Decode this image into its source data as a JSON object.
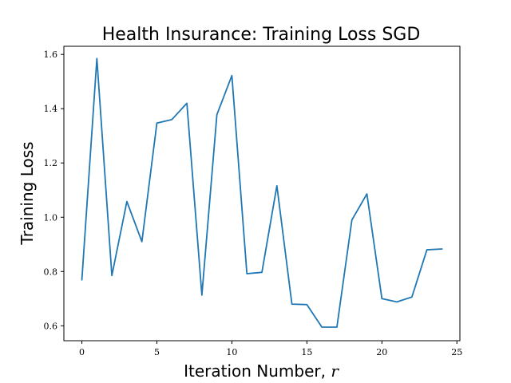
{
  "chart_data": {
    "type": "line",
    "title": "Health Insurance: Training Loss SGD",
    "xlabel": "Iteration Number, ",
    "xlabel_var": "r",
    "ylabel": "Training Loss",
    "xlim": [
      -1.2,
      25.2
    ],
    "ylim": [
      0.545,
      1.63
    ],
    "xticks": [
      0,
      5,
      10,
      15,
      20,
      25
    ],
    "xtick_labels": [
      "0",
      "5",
      "10",
      "15",
      "20",
      "25"
    ],
    "yticks": [
      0.6,
      0.8,
      1.0,
      1.2,
      1.4,
      1.6
    ],
    "ytick_labels": [
      "0.6",
      "0.8",
      "1.0",
      "1.2",
      "1.4",
      "1.6"
    ],
    "grid": false,
    "legend": "none",
    "colors": {
      "series": "#1f77b4"
    },
    "series": [
      {
        "x": [
          0,
          1,
          2,
          3,
          4,
          5,
          6,
          7,
          8,
          9,
          10,
          11,
          12,
          13,
          14,
          15,
          16,
          17,
          18,
          19,
          20,
          21,
          22,
          23,
          24
        ],
        "values": [
          0.77,
          1.585,
          0.785,
          1.058,
          0.91,
          1.347,
          1.36,
          1.42,
          0.713,
          1.378,
          1.522,
          0.792,
          0.797,
          1.116,
          0.68,
          0.678,
          0.595,
          0.595,
          0.99,
          1.086,
          0.7,
          0.688,
          0.706,
          0.88,
          0.883
        ]
      }
    ]
  }
}
